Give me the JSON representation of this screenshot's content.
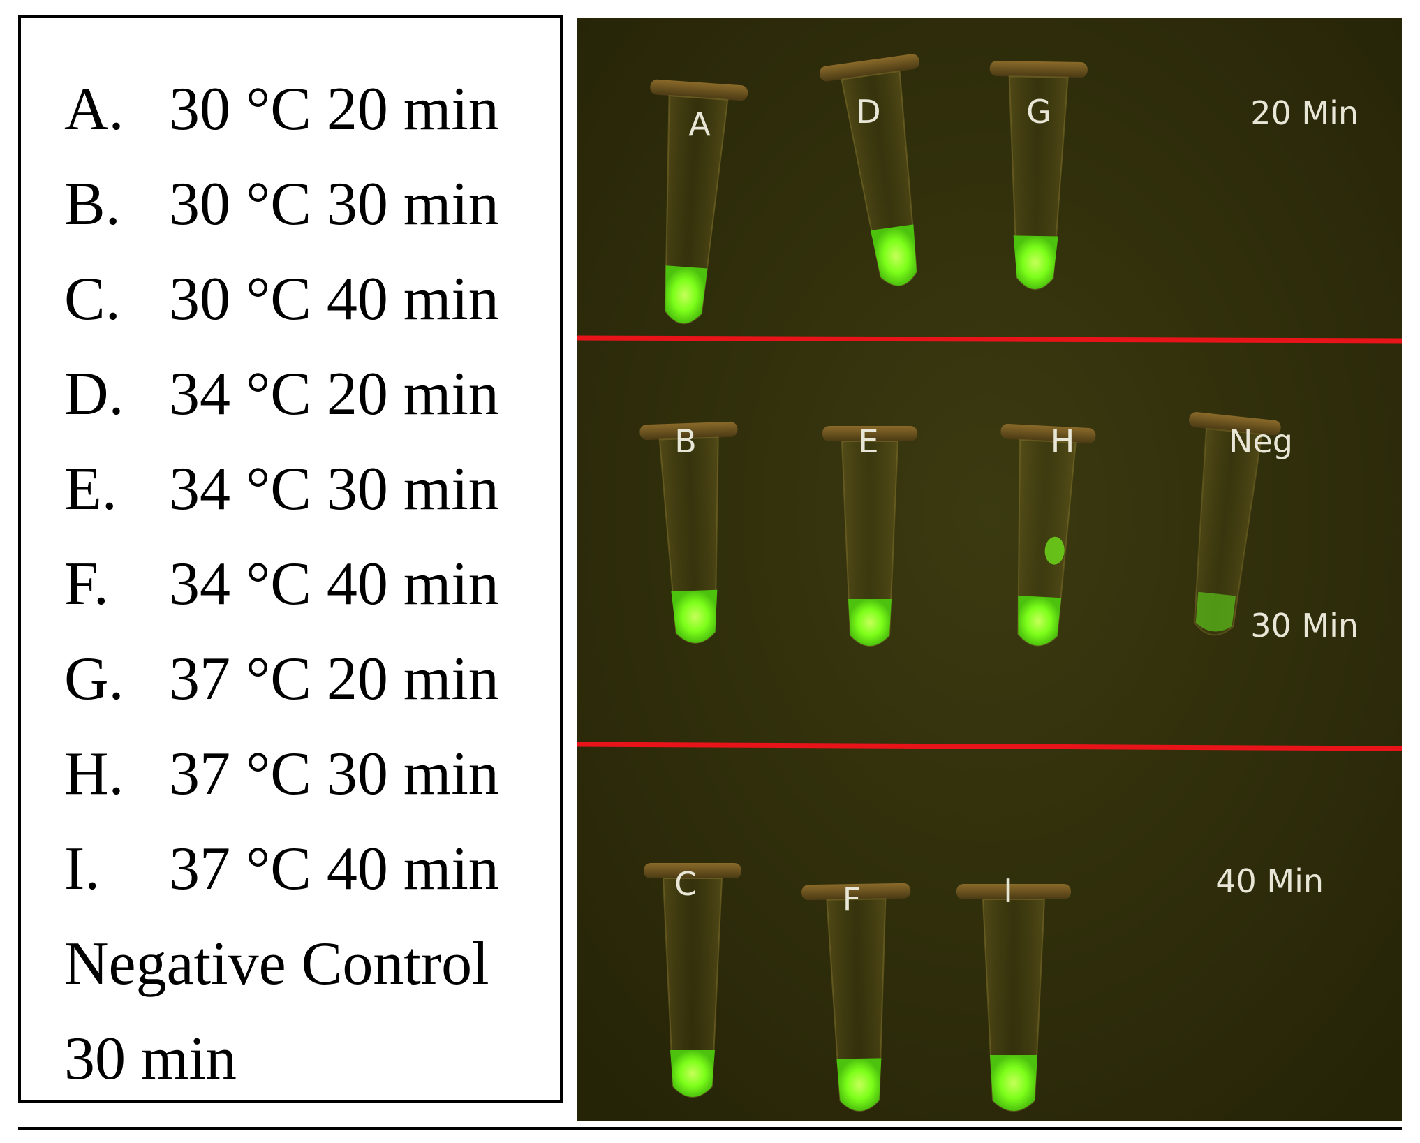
{
  "legend": {
    "rows": [
      {
        "letter": "A.",
        "cond": "30 °C 20 min"
      },
      {
        "letter": "B.",
        "cond": "30 °C 30 min"
      },
      {
        "letter": "C.",
        "cond": "30 °C 40 min"
      },
      {
        "letter": "D.",
        "cond": "34 °C 20 min"
      },
      {
        "letter": "E.",
        "cond": "34 °C 30 min"
      },
      {
        "letter": "F.",
        "cond": "34 °C 40 min"
      },
      {
        "letter": "G.",
        "cond": "37 °C 20 min"
      },
      {
        "letter": "H.",
        "cond": "37 °C 30 min"
      },
      {
        "letter": "I.",
        "cond": "37 °C 40 min"
      }
    ],
    "negative_line1": "Negative Control",
    "negative_line2": "30 min"
  },
  "photo": {
    "row_labels": [
      "20 Min",
      "30 Min",
      "40 Min"
    ],
    "tube_labels": [
      "A",
      "D",
      "G",
      "B",
      "E",
      "H",
      "Neg",
      "C",
      "F",
      "I"
    ],
    "colors": {
      "background": "#2c2a08",
      "fluorescence": "#7dff1a",
      "divider": "#e8141a",
      "label_text": "#e8e6d6"
    }
  }
}
